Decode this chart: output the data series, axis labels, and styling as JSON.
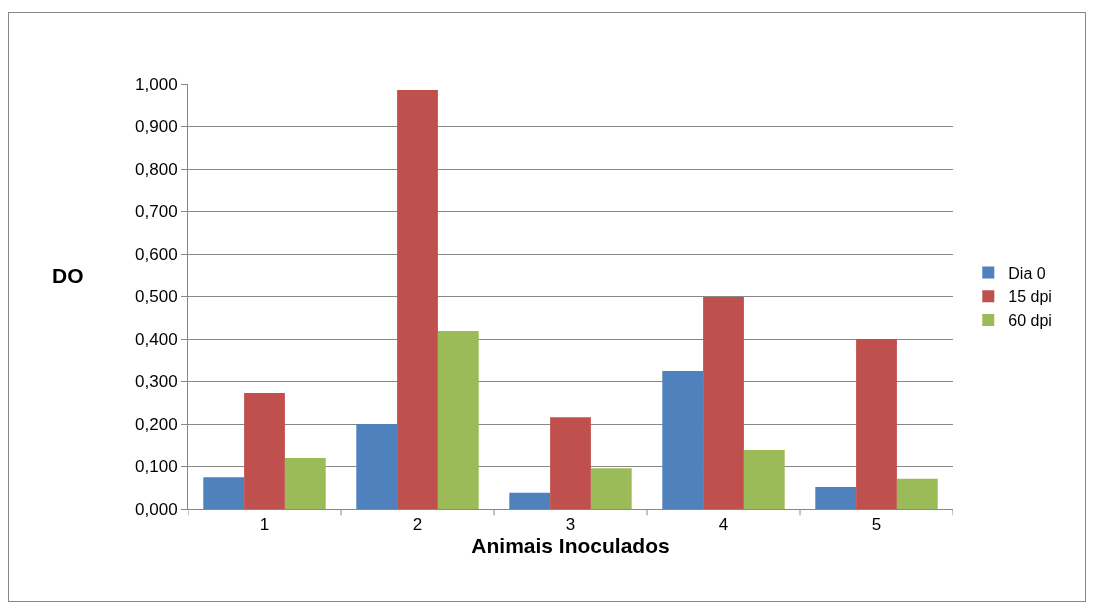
{
  "chart_data": {
    "type": "bar",
    "xlabel": "Animais Inoculados",
    "ylabel": "DO",
    "categories": [
      "1",
      "2",
      "3",
      "4",
      "5"
    ],
    "series": [
      {
        "name": "Dia 0",
        "color": "#4f81bd",
        "values": [
          0.075,
          0.2,
          0.038,
          0.325,
          0.052
        ]
      },
      {
        "name": "15 dpi",
        "color": "#c0504d",
        "values": [
          0.273,
          0.986,
          0.216,
          0.499,
          0.4
        ]
      },
      {
        "name": "60 dpi",
        "color": "#9bbb59",
        "values": [
          0.12,
          0.419,
          0.096,
          0.139,
          0.071
        ]
      }
    ],
    "ylim": [
      0,
      1
    ],
    "yticks": [
      {
        "value": 0,
        "label": "0,000"
      },
      {
        "value": 0.1,
        "label": "0,100"
      },
      {
        "value": 0.2,
        "label": "0,200"
      },
      {
        "value": 0.3,
        "label": "0,300"
      },
      {
        "value": 0.4,
        "label": "0,400"
      },
      {
        "value": 0.5,
        "label": "0,500"
      },
      {
        "value": 0.6,
        "label": "0,600"
      },
      {
        "value": 0.7,
        "label": "0,700"
      },
      {
        "value": 0.8,
        "label": "0,800"
      },
      {
        "value": 0.9,
        "label": "0,900"
      },
      {
        "value": 1,
        "label": "1,000"
      }
    ],
    "grid": "y",
    "legend": "right"
  }
}
